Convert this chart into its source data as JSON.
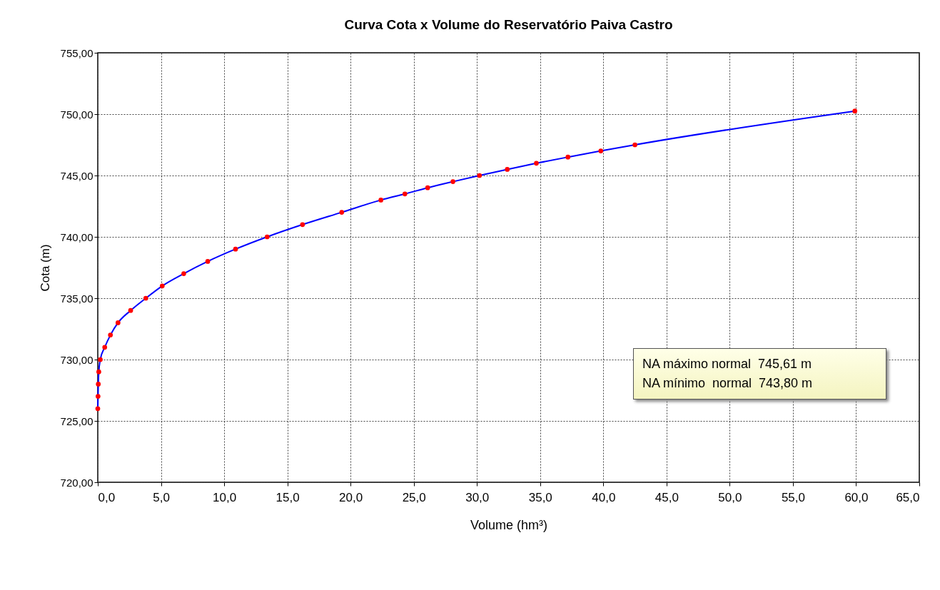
{
  "chart_data": {
    "type": "line",
    "title": "Curva Cota x Volume do Reservatório Paiva Castro",
    "xlabel": "Volume (hm³)",
    "ylabel": "Cota (m)",
    "x": [
      0.0,
      0.02,
      0.04,
      0.08,
      0.2,
      0.55,
      1.0,
      1.6,
      2.6,
      3.8,
      5.1,
      6.8,
      8.7,
      10.9,
      13.4,
      16.2,
      19.3,
      22.4,
      24.3,
      26.1,
      28.1,
      30.2,
      32.4,
      34.7,
      37.2,
      39.8,
      42.5,
      59.9
    ],
    "series": [
      {
        "color": "#0000ff",
        "values": [
          726,
          727,
          728,
          729,
          730,
          731,
          732,
          733,
          734,
          735,
          736,
          737,
          738,
          739,
          740,
          741,
          742,
          743,
          743.5,
          744,
          744.5,
          745,
          745.5,
          746,
          746.5,
          747,
          747.5,
          750.25
        ]
      }
    ],
    "marker": "circle",
    "grid": true,
    "line_style": "solid",
    "xlim": [
      0,
      65
    ],
    "ylim": [
      720,
      755
    ],
    "xticks": [
      {
        "value": 0,
        "label": "0,0"
      },
      {
        "value": 5,
        "label": "5,0"
      },
      {
        "value": 10,
        "label": "10,0"
      },
      {
        "value": 15,
        "label": "15,0"
      },
      {
        "value": 20,
        "label": "20,0"
      },
      {
        "value": 25,
        "label": "25,0"
      },
      {
        "value": 30,
        "label": "30,0"
      },
      {
        "value": 35,
        "label": "35,0"
      },
      {
        "value": 40,
        "label": "40,0"
      },
      {
        "value": 45,
        "label": "45,0"
      },
      {
        "value": 50,
        "label": "50,0"
      },
      {
        "value": 55,
        "label": "55,0"
      },
      {
        "value": 60,
        "label": "60,0"
      },
      {
        "value": 65,
        "label": "65,0"
      }
    ],
    "yticks": [
      {
        "value": 720,
        "label": "720,00"
      },
      {
        "value": 725,
        "label": "725,00"
      },
      {
        "value": 730,
        "label": "730,00"
      },
      {
        "value": 735,
        "label": "735,00"
      },
      {
        "value": 740,
        "label": "740,00"
      },
      {
        "value": 745,
        "label": "745,00"
      },
      {
        "value": 750,
        "label": "750,00"
      },
      {
        "value": 755,
        "label": "755,00"
      }
    ],
    "annotations": [
      "NA máximo normal  745,61 m",
      "NA mínimo  normal  743,80 m"
    ]
  }
}
